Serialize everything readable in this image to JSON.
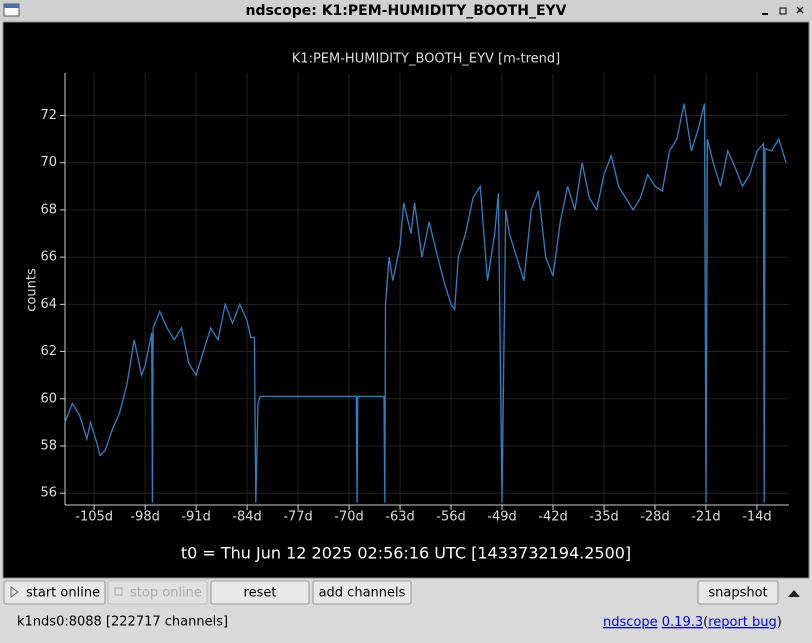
{
  "window": {
    "title": "ndscope: K1:PEM-HUMIDITY_BOOTH_EYV"
  },
  "chart_data": {
    "type": "line",
    "title": "K1:PEM-HUMIDITY_BOOTH_EYV [m-trend]",
    "ylabel": "counts",
    "xlabel": "t0 = Thu Jun 12 2025 02:56:16 UTC [1433732194.2500]",
    "xlim": [
      -109,
      -9.6
    ],
    "ylim": [
      55.5,
      73.8
    ],
    "grid": true,
    "xticks": [
      {
        "value": -105,
        "label": "-105d"
      },
      {
        "value": -98,
        "label": "-98d"
      },
      {
        "value": -91,
        "label": "-91d"
      },
      {
        "value": -84,
        "label": "-84d"
      },
      {
        "value": -77,
        "label": "-77d"
      },
      {
        "value": -70,
        "label": "-70d"
      },
      {
        "value": -63,
        "label": "-63d"
      },
      {
        "value": -56,
        "label": "-56d"
      },
      {
        "value": -49,
        "label": "-49d"
      },
      {
        "value": -42,
        "label": "-42d"
      },
      {
        "value": -35,
        "label": "-35d"
      },
      {
        "value": -28,
        "label": "-28d"
      },
      {
        "value": -21,
        "label": "-21d"
      },
      {
        "value": -14,
        "label": "-14d"
      }
    ],
    "yticks": [
      56,
      58,
      60,
      62,
      64,
      66,
      68,
      70,
      72
    ],
    "series": [
      {
        "color": "#2f7fc1",
        "x": [
          -109,
          -108,
          -107,
          -106,
          -105.5,
          -104.5,
          -104.2,
          -103.5,
          -102.5,
          -101.5,
          -100.5,
          -99.5,
          -98.5,
          -98,
          -97.1,
          -97,
          -96.9,
          -96,
          -95,
          -94,
          -93,
          -92,
          -91,
          -90,
          -89,
          -88,
          -87,
          -86,
          -85,
          -84,
          -83.5,
          -83,
          -82.8,
          -82.5,
          -82.2,
          -75,
          -69,
          -68.9,
          -68.8,
          -65.2,
          -65.1,
          -65,
          -64.5,
          -64,
          -63,
          -62.5,
          -61.5,
          -61,
          -60,
          -59,
          -58,
          -57,
          -56.5,
          -56,
          -55.5,
          -55,
          -54,
          -53,
          -52,
          -51,
          -50,
          -49.5,
          -49,
          -48.5,
          -48,
          -47,
          -46,
          -45,
          -44,
          -43,
          -42,
          -41,
          -40,
          -39,
          -38,
          -37,
          -36,
          -35,
          -34,
          -33,
          -32,
          -31,
          -30,
          -29,
          -28,
          -27,
          -26,
          -25,
          -24,
          -23,
          -22,
          -21.2,
          -21,
          -20.8,
          -20,
          -19,
          -18,
          -17,
          -16,
          -15,
          -14,
          -13.1,
          -13,
          -12.9,
          -12,
          -11,
          -10
        ],
        "values": [
          59.0,
          59.8,
          59.3,
          58.3,
          59.0,
          58.0,
          57.6,
          57.8,
          58.7,
          59.4,
          60.6,
          62.5,
          61.0,
          61.4,
          62.8,
          55.6,
          63.0,
          63.7,
          63.0,
          62.5,
          63.0,
          61.5,
          61.0,
          62.0,
          63.0,
          62.5,
          64.0,
          63.2,
          64.0,
          63.3,
          62.6,
          62.6,
          55.6,
          59.8,
          60.1,
          60.1,
          60.1,
          55.6,
          60.1,
          60.1,
          55.6,
          64.0,
          66.0,
          65.0,
          66.5,
          68.3,
          67.0,
          68.3,
          66.0,
          67.5,
          66.2,
          65.0,
          64.5,
          64.0,
          63.8,
          66.0,
          67.0,
          68.5,
          69.0,
          65.0,
          67.0,
          68.7,
          55.6,
          68.0,
          67.0,
          66.0,
          65.0,
          68.0,
          68.8,
          66.0,
          65.2,
          67.5,
          69.0,
          68.0,
          70.0,
          68.5,
          68.0,
          69.5,
          70.3,
          69.0,
          68.5,
          68.0,
          68.5,
          69.5,
          69.0,
          68.8,
          70.5,
          71.0,
          72.5,
          70.5,
          71.5,
          72.5,
          55.6,
          71.0,
          70.0,
          69.0,
          70.5,
          69.8,
          69.0,
          69.5,
          70.5,
          70.8,
          55.6,
          70.6,
          70.5,
          71.0,
          70.0
        ]
      }
    ]
  },
  "toolbar": {
    "start": "start online",
    "stop": "stop online",
    "reset": "reset",
    "add": "add channels",
    "snapshot": "snapshot"
  },
  "status": {
    "server": "k1nds0:8088 [222717 channels]",
    "links": [
      "ndscope",
      "0.19.3",
      "(",
      "report bug",
      ")"
    ]
  }
}
